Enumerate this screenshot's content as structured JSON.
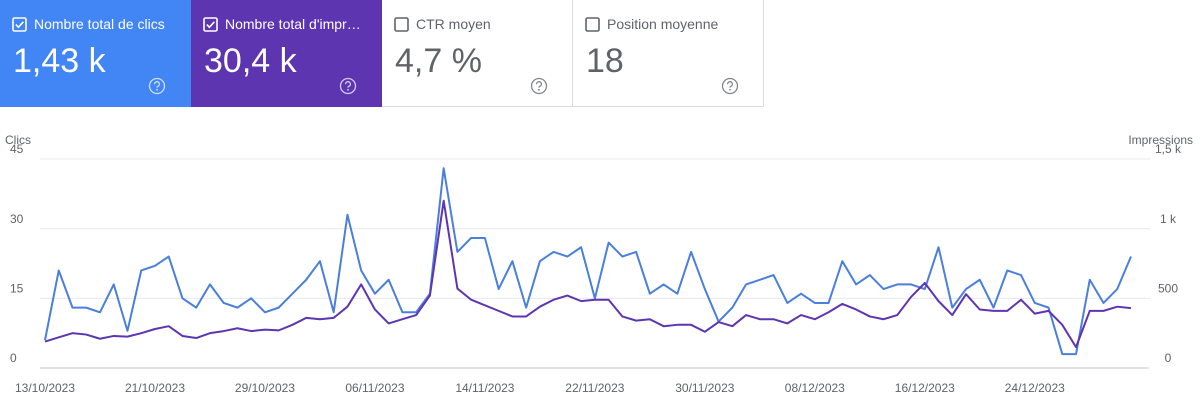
{
  "cards": [
    {
      "title": "Nombre total de clics",
      "value": "1,43 k",
      "checked": true
    },
    {
      "title": "Nombre total d'impressions",
      "value": "30,4 k",
      "checked": true
    },
    {
      "title": "CTR moyen",
      "value": "4,7 %",
      "checked": false
    },
    {
      "title": "Position moyenne",
      "value": "18",
      "checked": false
    }
  ],
  "chart_data": {
    "type": "line",
    "y_label": "Clics",
    "y2_label": "Impressions",
    "categories": [
      "13/10/2023",
      null,
      null,
      null,
      null,
      null,
      null,
      null,
      "21/10/2023",
      null,
      null,
      null,
      null,
      null,
      null,
      null,
      "29/10/2023",
      null,
      null,
      null,
      null,
      null,
      null,
      null,
      "06/11/2023",
      null,
      null,
      null,
      null,
      null,
      null,
      null,
      "14/11/2023",
      null,
      null,
      null,
      null,
      null,
      null,
      null,
      "22/11/2023",
      null,
      null,
      null,
      null,
      null,
      null,
      null,
      "30/11/2023",
      null,
      null,
      null,
      null,
      null,
      null,
      null,
      "08/12/2023",
      null,
      null,
      null,
      null,
      null,
      null,
      null,
      "16/12/2023",
      null,
      null,
      null,
      null,
      null,
      null,
      null,
      "24/12/2023",
      null,
      null,
      null,
      null,
      null,
      null,
      null
    ],
    "series": [
      {
        "name": "Clics",
        "color": "#4a7fdc",
        "axis": "y",
        "values": [
          6,
          21,
          13,
          13,
          12,
          18,
          8,
          21,
          22,
          24,
          15,
          13,
          18,
          14,
          13,
          15,
          12,
          13,
          16,
          19,
          23,
          12,
          33,
          21,
          16,
          19,
          12,
          12,
          16,
          43,
          25,
          28,
          28,
          17,
          23,
          13,
          23,
          25,
          24,
          26,
          15,
          27,
          24,
          25,
          16,
          18,
          16,
          25,
          17,
          10,
          13,
          18,
          19,
          20,
          14,
          16,
          14,
          14,
          23,
          18,
          20,
          17,
          18,
          18,
          17,
          26,
          13,
          17,
          19,
          13,
          21,
          20,
          14,
          13,
          3,
          3,
          19,
          14,
          17,
          24
        ]
      },
      {
        "name": "Impressions",
        "color": "#5e35b1",
        "axis": "y2",
        "values": [
          190,
          220,
          250,
          240,
          210,
          230,
          225,
          250,
          280,
          300,
          230,
          215,
          250,
          265,
          285,
          265,
          275,
          270,
          310,
          360,
          350,
          360,
          440,
          600,
          420,
          320,
          350,
          380,
          520,
          1200,
          570,
          490,
          450,
          410,
          370,
          370,
          440,
          490,
          520,
          480,
          490,
          490,
          370,
          340,
          350,
          300,
          310,
          310,
          260,
          330,
          300,
          380,
          350,
          350,
          320,
          380,
          350,
          400,
          460,
          420,
          370,
          350,
          380,
          510,
          610,
          480,
          380,
          530,
          420,
          410,
          410,
          490,
          390,
          410,
          310,
          150,
          410,
          410,
          440,
          430
        ]
      }
    ],
    "ylim": [
      0,
      45
    ],
    "yticks": [
      0,
      15,
      30,
      45
    ],
    "y2lim": [
      0,
      1500
    ],
    "y2ticks": [
      0,
      500,
      {
        "value": 1000,
        "label": "1 k"
      },
      {
        "value": 1500,
        "label": "1,5 k"
      }
    ],
    "grid": true
  }
}
